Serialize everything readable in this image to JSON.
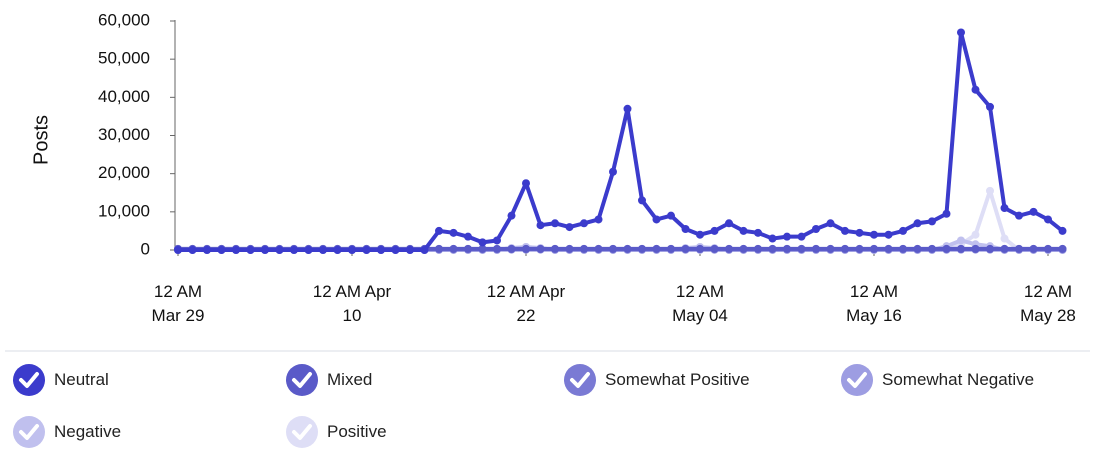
{
  "chart_data": {
    "type": "line",
    "y_label": "Posts",
    "categories": [
      "12 AM Mar 29",
      null,
      null,
      null,
      null,
      null,
      null,
      null,
      null,
      null,
      null,
      null,
      "12 AM Apr 10",
      null,
      null,
      null,
      null,
      null,
      null,
      null,
      null,
      null,
      null,
      null,
      "12 AM Apr 22",
      null,
      null,
      null,
      null,
      null,
      null,
      null,
      null,
      null,
      null,
      null,
      "12 AM May 04",
      null,
      null,
      null,
      null,
      null,
      null,
      null,
      null,
      null,
      null,
      null,
      "12 AM May 16",
      null,
      null,
      null,
      null,
      null,
      null,
      null,
      null,
      null,
      null,
      null,
      "12 AM May 28",
      null
    ],
    "ylim": [
      0,
      60000
    ],
    "yticks": [
      0,
      {
        "value": 10000,
        "label": "10,000"
      },
      {
        "value": 20000,
        "label": "20,000"
      },
      {
        "value": 30000,
        "label": "30,000"
      },
      {
        "value": 40000,
        "label": "40,000"
      },
      {
        "value": 50000,
        "label": "50,000"
      },
      {
        "value": 60000,
        "label": "60,000"
      }
    ],
    "series": [
      {
        "name": "Neutral",
        "color": "#3b3bcc",
        "values": [
          0,
          0,
          0,
          0,
          0,
          0,
          0,
          0,
          0,
          0,
          0,
          0,
          0,
          0,
          0,
          0,
          0,
          0,
          5000,
          4500,
          3500,
          2000,
          2500,
          9000,
          17500,
          6500,
          7000,
          6000,
          7000,
          8000,
          20500,
          37000,
          13000,
          8000,
          9000,
          5500,
          4000,
          5000,
          7000,
          5000,
          4500,
          3000,
          3500,
          3500,
          5500,
          7000,
          5000,
          4500,
          4000,
          4000,
          5000,
          7000,
          7500,
          9500,
          57000,
          42000,
          37500,
          11000,
          9000,
          10000,
          8000,
          5000
        ]
      },
      {
        "name": "Mixed",
        "color": "#5a5ac8",
        "values": [
          300,
          300,
          300,
          300,
          300,
          300,
          300,
          300,
          300,
          300,
          300,
          300,
          300,
          300,
          300,
          300,
          300,
          300,
          300,
          300,
          300,
          300,
          300,
          300,
          300,
          300,
          300,
          300,
          300,
          300,
          300,
          300,
          300,
          300,
          300,
          300,
          300,
          300,
          300,
          300,
          300,
          300,
          300,
          300,
          300,
          300,
          300,
          300,
          300,
          300,
          300,
          300,
          300,
          300,
          300,
          300,
          300,
          300,
          300,
          300,
          300,
          300
        ]
      },
      {
        "name": "Somewhat Positive",
        "color": "#7a7ad4",
        "values": [
          200,
          200,
          200,
          200,
          200,
          200,
          200,
          200,
          200,
          200,
          200,
          200,
          200,
          200,
          200,
          200,
          200,
          200,
          200,
          200,
          200,
          200,
          200,
          200,
          200,
          200,
          200,
          200,
          200,
          200,
          200,
          200,
          200,
          200,
          200,
          200,
          200,
          200,
          200,
          200,
          200,
          200,
          200,
          200,
          200,
          200,
          200,
          200,
          200,
          200,
          200,
          200,
          200,
          200,
          200,
          200,
          200,
          200,
          200,
          200,
          200,
          200
        ]
      },
      {
        "name": "Somewhat Negative",
        "color": "#9d9de2",
        "values": [
          100,
          100,
          100,
          100,
          100,
          100,
          100,
          100,
          100,
          100,
          100,
          100,
          100,
          100,
          100,
          100,
          100,
          100,
          100,
          100,
          100,
          100,
          100,
          100,
          100,
          100,
          100,
          100,
          100,
          100,
          100,
          100,
          100,
          100,
          100,
          100,
          100,
          100,
          100,
          100,
          100,
          100,
          100,
          100,
          100,
          100,
          100,
          100,
          100,
          100,
          100,
          100,
          100,
          100,
          100,
          100,
          100,
          100,
          100,
          100,
          100,
          100
        ]
      },
      {
        "name": "Negative",
        "color": "#c0c0ee",
        "values": [
          0,
          0,
          0,
          0,
          0,
          0,
          0,
          0,
          0,
          0,
          0,
          0,
          0,
          0,
          0,
          0,
          0,
          0,
          0,
          0,
          0,
          0,
          0,
          500,
          800,
          500,
          0,
          0,
          0,
          0,
          0,
          0,
          0,
          0,
          0,
          500,
          800,
          500,
          0,
          0,
          0,
          0,
          0,
          0,
          0,
          0,
          0,
          0,
          0,
          0,
          0,
          0,
          0,
          1000,
          2500,
          1500,
          1000,
          0,
          0,
          0,
          0,
          0
        ]
      },
      {
        "name": "Positive",
        "color": "#dedef6",
        "values": [
          0,
          0,
          0,
          0,
          0,
          0,
          0,
          0,
          0,
          0,
          0,
          0,
          0,
          0,
          0,
          0,
          0,
          0,
          0,
          0,
          0,
          0,
          0,
          500,
          800,
          500,
          0,
          0,
          0,
          0,
          0,
          0,
          0,
          0,
          0,
          0,
          0,
          0,
          0,
          0,
          0,
          0,
          0,
          0,
          0,
          0,
          0,
          0,
          0,
          0,
          0,
          0,
          0,
          0,
          1500,
          4000,
          15500,
          3000,
          0,
          0,
          0,
          0
        ]
      }
    ]
  }
}
